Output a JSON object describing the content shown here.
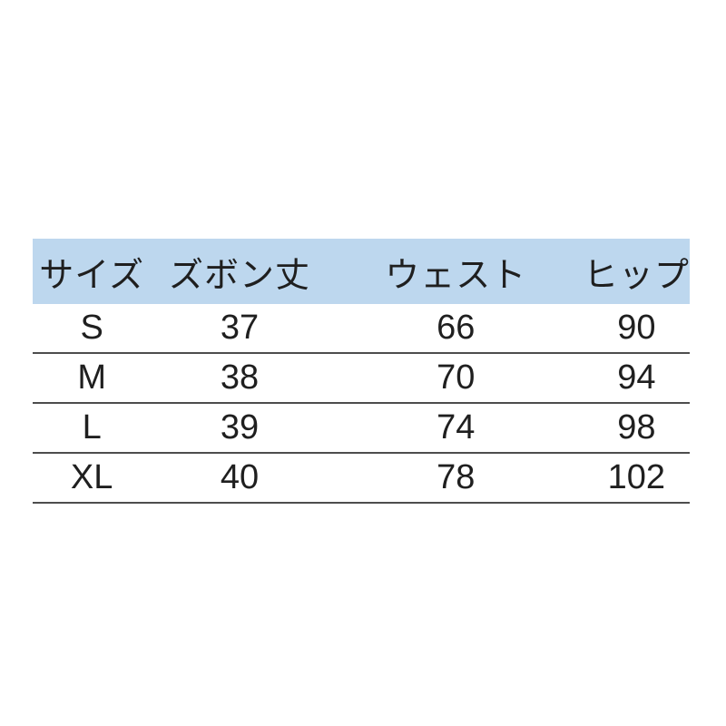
{
  "chart_data": {
    "type": "table",
    "columns": [
      "サイズ",
      "ズボン丈",
      "ウェスト",
      "ヒップ"
    ],
    "rows": [
      [
        "S",
        37,
        66,
        90
      ],
      [
        "M",
        38,
        70,
        94
      ],
      [
        "L",
        39,
        74,
        98
      ],
      [
        "XL",
        40,
        78,
        102
      ]
    ],
    "header_background": "#bdd7ee",
    "text_color": "#1f1f1f",
    "rule_color": "#4d4d4d",
    "page_background": "#ffffff",
    "grid": "horizontal-rules-only",
    "unit_note": ""
  }
}
